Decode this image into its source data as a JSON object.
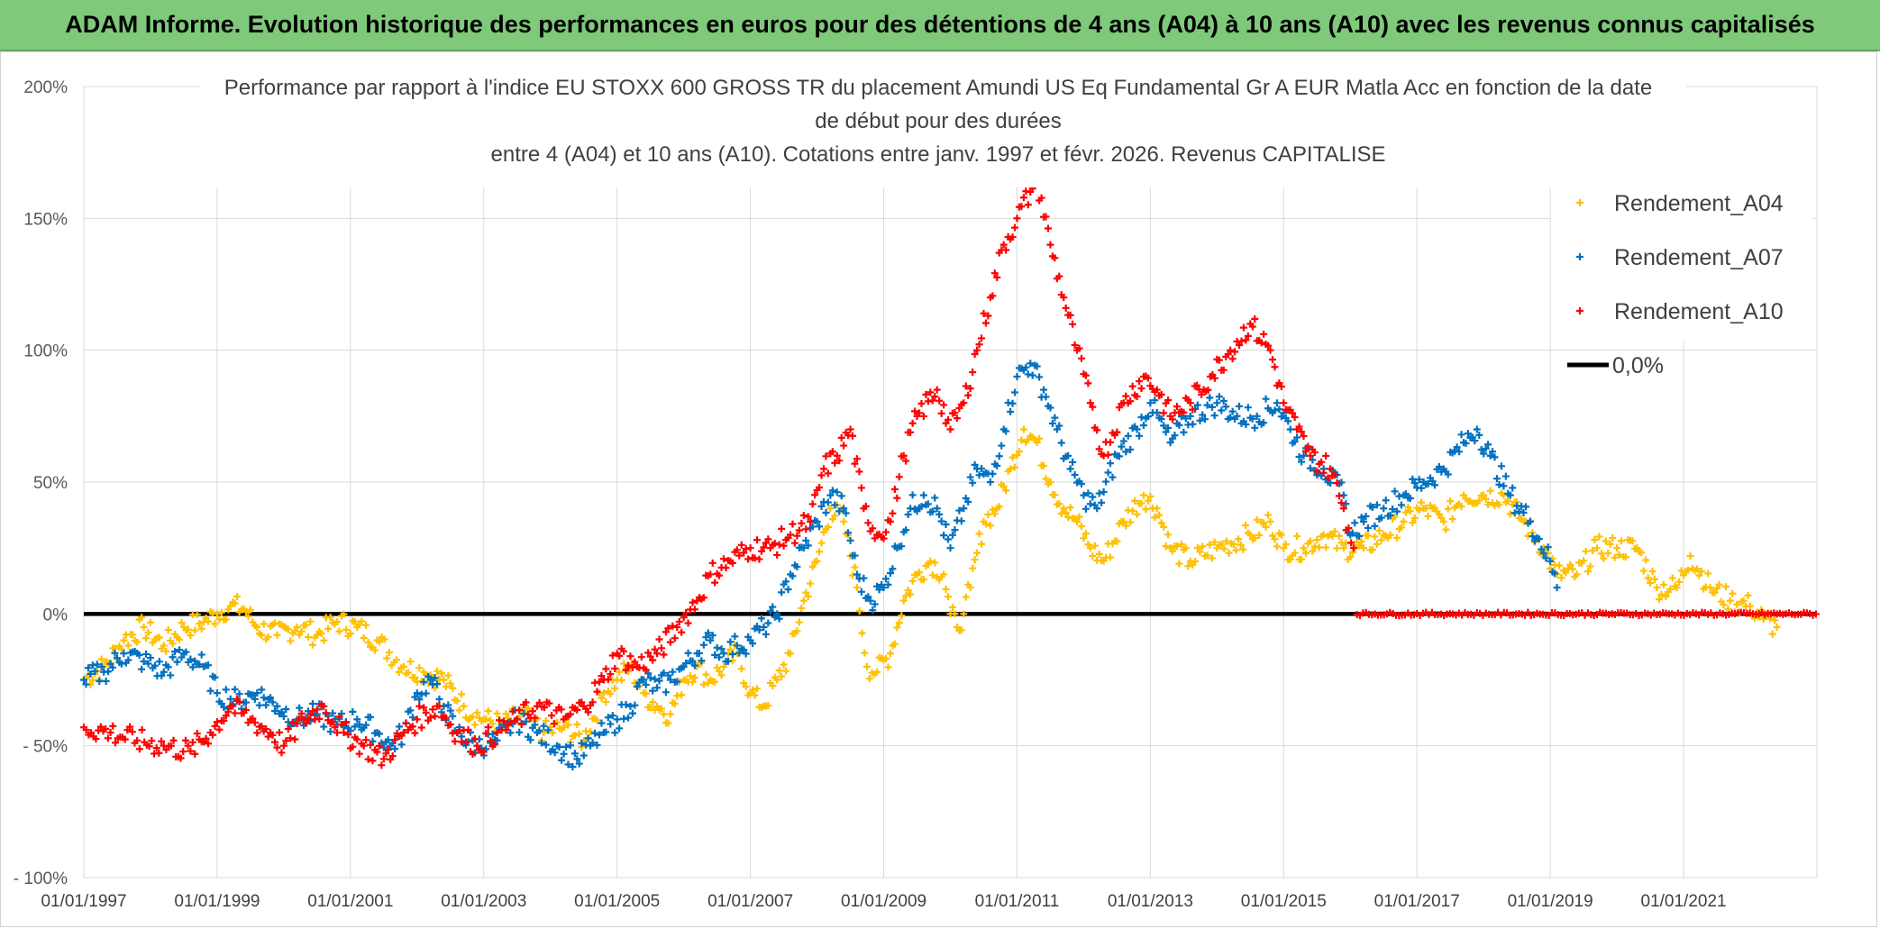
{
  "banner": {
    "text": "ADAM Informe. Evolution historique des performances en euros pour des détentions de 4 ans (A04) à 10 ans (A10) avec les revenus connus capitalisés"
  },
  "chart_data": {
    "type": "scatter",
    "title_lines": [
      "Performance par rapport à l'indice EU STOXX 600 GROSS TR  du placement Amundi US Eq Fundamental Gr A EUR Matla Acc en fonction de la date",
      "de début pour des durées",
      "entre 4 (A04) et 10 ans (A10). Cotations entre janv. 1997 et févr. 2026. Revenus CAPITALISE"
    ],
    "x_range": [
      1997.0,
      2023.0
    ],
    "ylim": [
      -100,
      200
    ],
    "y_ticks": [
      {
        "value": 200,
        "label": "200%"
      },
      {
        "value": 150,
        "label": "150%"
      },
      {
        "value": 100,
        "label": "100%"
      },
      {
        "value": 50,
        "label": "50%"
      },
      {
        "value": 0,
        "label": "0%"
      },
      {
        "value": -50,
        "label": "- 50%"
      },
      {
        "value": -100,
        "label": "- 100%"
      }
    ],
    "x_ticks": [
      {
        "value": 1997,
        "label": "01/01/1997"
      },
      {
        "value": 1999,
        "label": "01/01/1999"
      },
      {
        "value": 2001,
        "label": "01/01/2001"
      },
      {
        "value": 2003,
        "label": "01/01/2003"
      },
      {
        "value": 2005,
        "label": "01/01/2005"
      },
      {
        "value": 2007,
        "label": "01/01/2007"
      },
      {
        "value": 2009,
        "label": "01/01/2009"
      },
      {
        "value": 2011,
        "label": "01/01/2011"
      },
      {
        "value": 2013,
        "label": "01/01/2013"
      },
      {
        "value": 2015,
        "label": "01/01/2015"
      },
      {
        "value": 2017,
        "label": "01/01/2017"
      },
      {
        "value": 2019,
        "label": "01/01/2019"
      },
      {
        "value": 2021,
        "label": "01/01/2021"
      }
    ],
    "grid": true,
    "legend_position": "top-right",
    "series": [
      {
        "name": "Rendement_A04",
        "color": "#ffc000",
        "marker": "+",
        "points": [
          [
            1997.0,
            -25
          ],
          [
            1997.3,
            -20
          ],
          [
            1997.6,
            -10
          ],
          [
            1997.9,
            -5
          ],
          [
            1998.2,
            -12
          ],
          [
            1998.5,
            -5
          ],
          [
            1998.8,
            -3
          ],
          [
            1999.0,
            0
          ],
          [
            1999.2,
            3
          ],
          [
            1999.4,
            2
          ],
          [
            1999.6,
            -5
          ],
          [
            1999.9,
            -8
          ],
          [
            2000.2,
            -5
          ],
          [
            2000.5,
            -8
          ],
          [
            2000.8,
            -3
          ],
          [
            2001.1,
            -5
          ],
          [
            2001.4,
            -10
          ],
          [
            2001.8,
            -20
          ],
          [
            2002.1,
            -22
          ],
          [
            2002.4,
            -25
          ],
          [
            2002.7,
            -35
          ],
          [
            2003.0,
            -40
          ],
          [
            2003.3,
            -42
          ],
          [
            2003.6,
            -38
          ],
          [
            2003.9,
            -45
          ],
          [
            2004.2,
            -43
          ],
          [
            2004.5,
            -48
          ],
          [
            2004.8,
            -30
          ],
          [
            2005.0,
            -25
          ],
          [
            2005.2,
            -20
          ],
          [
            2005.4,
            -30
          ],
          [
            2005.6,
            -35
          ],
          [
            2005.8,
            -38
          ],
          [
            2006.0,
            -25
          ],
          [
            2006.2,
            -20
          ],
          [
            2006.4,
            -25
          ],
          [
            2006.6,
            -20
          ],
          [
            2006.8,
            -15
          ],
          [
            2007.0,
            -30
          ],
          [
            2007.2,
            -35
          ],
          [
            2007.4,
            -25
          ],
          [
            2007.6,
            -15
          ],
          [
            2007.8,
            5
          ],
          [
            2008.0,
            20
          ],
          [
            2008.2,
            40
          ],
          [
            2008.4,
            35
          ],
          [
            2008.6,
            10
          ],
          [
            2008.75,
            -20
          ],
          [
            2008.9,
            -22
          ],
          [
            2009.1,
            -15
          ],
          [
            2009.3,
            5
          ],
          [
            2009.5,
            15
          ],
          [
            2009.7,
            20
          ],
          [
            2009.9,
            15
          ],
          [
            2010.0,
            0
          ],
          [
            2010.1,
            -5
          ],
          [
            2010.2,
            0
          ],
          [
            2010.3,
            10
          ],
          [
            2010.5,
            35
          ],
          [
            2010.7,
            40
          ],
          [
            2010.9,
            55
          ],
          [
            2011.1,
            70
          ],
          [
            2011.3,
            65
          ],
          [
            2011.5,
            50
          ],
          [
            2011.7,
            40
          ],
          [
            2011.9,
            35
          ],
          [
            2012.1,
            25
          ],
          [
            2012.3,
            20
          ],
          [
            2012.6,
            35
          ],
          [
            2012.9,
            45
          ],
          [
            2013.1,
            40
          ],
          [
            2013.3,
            25
          ],
          [
            2013.6,
            20
          ],
          [
            2014.0,
            25
          ],
          [
            2014.5,
            30
          ],
          [
            2014.8,
            35
          ],
          [
            2015.0,
            25
          ],
          [
            2015.3,
            25
          ],
          [
            2015.6,
            30
          ],
          [
            2015.9,
            25
          ],
          [
            2016.2,
            25
          ],
          [
            2016.5,
            30
          ],
          [
            2016.8,
            35
          ],
          [
            2017.1,
            40
          ],
          [
            2017.4,
            35
          ],
          [
            2017.7,
            45
          ],
          [
            2018.0,
            45
          ],
          [
            2018.3,
            45
          ],
          [
            2018.6,
            35
          ],
          [
            2018.9,
            25
          ],
          [
            2019.1,
            15
          ],
          [
            2019.4,
            15
          ],
          [
            2019.7,
            25
          ],
          [
            2020.0,
            25
          ],
          [
            2020.3,
            25
          ],
          [
            2020.6,
            10
          ],
          [
            2020.9,
            10
          ],
          [
            2021.1,
            22
          ],
          [
            2021.4,
            10
          ],
          [
            2021.7,
            5
          ],
          [
            2022.0,
            3
          ],
          [
            2022.2,
            -2
          ],
          [
            2022.4,
            -5
          ]
        ]
      },
      {
        "name": "Rendement_A07",
        "color": "#0070c0",
        "marker": "+",
        "points": [
          [
            1997.0,
            -25
          ],
          [
            1997.3,
            -22
          ],
          [
            1997.6,
            -15
          ],
          [
            1997.9,
            -18
          ],
          [
            1998.2,
            -22
          ],
          [
            1998.5,
            -15
          ],
          [
            1998.8,
            -20
          ],
          [
            1999.0,
            -30
          ],
          [
            1999.3,
            -33
          ],
          [
            1999.6,
            -30
          ],
          [
            1999.9,
            -35
          ],
          [
            2000.2,
            -40
          ],
          [
            2000.5,
            -38
          ],
          [
            2000.8,
            -42
          ],
          [
            2001.1,
            -40
          ],
          [
            2001.4,
            -45
          ],
          [
            2001.6,
            -50
          ],
          [
            2001.8,
            -45
          ],
          [
            2002.0,
            -30
          ],
          [
            2002.2,
            -25
          ],
          [
            2002.4,
            -35
          ],
          [
            2002.6,
            -45
          ],
          [
            2002.9,
            -50
          ],
          [
            2003.2,
            -48
          ],
          [
            2003.5,
            -40
          ],
          [
            2003.8,
            -45
          ],
          [
            2004.1,
            -50
          ],
          [
            2004.4,
            -55
          ],
          [
            2004.6,
            -50
          ],
          [
            2004.8,
            -45
          ],
          [
            2005.0,
            -40
          ],
          [
            2005.2,
            -35
          ],
          [
            2005.4,
            -25
          ],
          [
            2005.6,
            -28
          ],
          [
            2005.8,
            -25
          ],
          [
            2006.0,
            -20
          ],
          [
            2006.2,
            -15
          ],
          [
            2006.4,
            -10
          ],
          [
            2006.6,
            -15
          ],
          [
            2006.8,
            -12
          ],
          [
            2007.0,
            -10
          ],
          [
            2007.2,
            -5
          ],
          [
            2007.4,
            0
          ],
          [
            2007.6,
            15
          ],
          [
            2007.8,
            25
          ],
          [
            2008.0,
            35
          ],
          [
            2008.2,
            45
          ],
          [
            2008.4,
            40
          ],
          [
            2008.6,
            15
          ],
          [
            2008.8,
            5
          ],
          [
            2009.0,
            10
          ],
          [
            2009.2,
            25
          ],
          [
            2009.4,
            40
          ],
          [
            2009.6,
            45
          ],
          [
            2009.8,
            40
          ],
          [
            2010.0,
            25
          ],
          [
            2010.2,
            40
          ],
          [
            2010.4,
            55
          ],
          [
            2010.6,
            50
          ],
          [
            2010.8,
            70
          ],
          [
            2011.0,
            90
          ],
          [
            2011.2,
            95
          ],
          [
            2011.4,
            85
          ],
          [
            2011.6,
            70
          ],
          [
            2011.8,
            55
          ],
          [
            2012.0,
            45
          ],
          [
            2012.2,
            40
          ],
          [
            2012.5,
            60
          ],
          [
            2012.8,
            70
          ],
          [
            2013.0,
            80
          ],
          [
            2013.3,
            65
          ],
          [
            2013.6,
            75
          ],
          [
            2014.0,
            80
          ],
          [
            2014.3,
            75
          ],
          [
            2014.6,
            75
          ],
          [
            2014.9,
            80
          ],
          [
            2015.1,
            70
          ],
          [
            2015.3,
            60
          ],
          [
            2015.6,
            55
          ],
          [
            2015.9,
            45
          ],
          [
            2016.0,
            30
          ],
          [
            2016.2,
            35
          ],
          [
            2016.5,
            40
          ],
          [
            2016.8,
            45
          ],
          [
            2017.1,
            50
          ],
          [
            2017.4,
            55
          ],
          [
            2017.7,
            65
          ],
          [
            2017.9,
            70
          ],
          [
            2018.1,
            60
          ],
          [
            2018.4,
            45
          ],
          [
            2018.7,
            35
          ],
          [
            2019.0,
            20
          ],
          [
            2019.1,
            10
          ]
        ]
      },
      {
        "name": "Rendement_A10",
        "color": "#ff0000",
        "marker": "+",
        "points": [
          [
            1997.0,
            -43
          ],
          [
            1997.4,
            -45
          ],
          [
            1997.8,
            -48
          ],
          [
            1998.2,
            -50
          ],
          [
            1998.6,
            -52
          ],
          [
            1998.9,
            -45
          ],
          [
            1999.2,
            -35
          ],
          [
            1999.5,
            -40
          ],
          [
            1999.8,
            -45
          ],
          [
            2000.0,
            -50
          ],
          [
            2000.3,
            -40
          ],
          [
            2000.6,
            -35
          ],
          [
            2000.9,
            -45
          ],
          [
            2001.2,
            -50
          ],
          [
            2001.5,
            -55
          ],
          [
            2001.8,
            -45
          ],
          [
            2002.0,
            -40
          ],
          [
            2002.3,
            -35
          ],
          [
            2002.6,
            -45
          ],
          [
            2002.9,
            -50
          ],
          [
            2003.2,
            -45
          ],
          [
            2003.5,
            -40
          ],
          [
            2003.8,
            -35
          ],
          [
            2004.2,
            -40
          ],
          [
            2004.5,
            -35
          ],
          [
            2004.8,
            -25
          ],
          [
            2005.0,
            -15
          ],
          [
            2005.3,
            -20
          ],
          [
            2005.6,
            -15
          ],
          [
            2005.9,
            -5
          ],
          [
            2006.2,
            5
          ],
          [
            2006.4,
            15
          ],
          [
            2006.7,
            20
          ],
          [
            2007.0,
            25
          ],
          [
            2007.3,
            25
          ],
          [
            2007.6,
            30
          ],
          [
            2007.9,
            35
          ],
          [
            2008.1,
            55
          ],
          [
            2008.3,
            60
          ],
          [
            2008.5,
            70
          ],
          [
            2008.7,
            40
          ],
          [
            2008.9,
            30
          ],
          [
            2009.1,
            35
          ],
          [
            2009.3,
            60
          ],
          [
            2009.5,
            75
          ],
          [
            2009.8,
            85
          ],
          [
            2010.0,
            70
          ],
          [
            2010.2,
            80
          ],
          [
            2010.4,
            100
          ],
          [
            2010.6,
            120
          ],
          [
            2010.8,
            140
          ],
          [
            2011.0,
            150
          ],
          [
            2011.2,
            160
          ],
          [
            2011.3,
            165
          ],
          [
            2011.5,
            140
          ],
          [
            2011.7,
            120
          ],
          [
            2011.9,
            100
          ],
          [
            2012.1,
            80
          ],
          [
            2012.3,
            60
          ],
          [
            2012.6,
            80
          ],
          [
            2012.9,
            90
          ],
          [
            2013.1,
            85
          ],
          [
            2013.3,
            75
          ],
          [
            2013.6,
            80
          ],
          [
            2013.9,
            90
          ],
          [
            2014.2,
            100
          ],
          [
            2014.5,
            110
          ],
          [
            2014.8,
            100
          ],
          [
            2015.0,
            80
          ],
          [
            2015.2,
            70
          ],
          [
            2015.4,
            60
          ],
          [
            2015.7,
            55
          ],
          [
            2015.9,
            40
          ],
          [
            2016.05,
            25
          ]
        ]
      },
      {
        "name": "Rendement_A10 (0%)",
        "color": "#ff0000",
        "marker": "+",
        "legend": false,
        "points_range": {
          "start": 2016.1,
          "end": 2023.0,
          "step": 0.045,
          "value": 0
        }
      },
      {
        "name": "0,0%",
        "color": "#000000",
        "type": "line",
        "points": [
          [
            1997.0,
            0
          ],
          [
            2023.0,
            0
          ]
        ]
      }
    ],
    "legend": [
      {
        "label": "Rendement_A04",
        "color": "#ffc000",
        "marker": "+"
      },
      {
        "label": "Rendement_A07",
        "color": "#0070c0",
        "marker": "+"
      },
      {
        "label": "Rendement_A10",
        "color": "#ff0000",
        "marker": "+"
      },
      {
        "label": "0,0%",
        "color": "#000000",
        "marker": "line"
      }
    ]
  }
}
